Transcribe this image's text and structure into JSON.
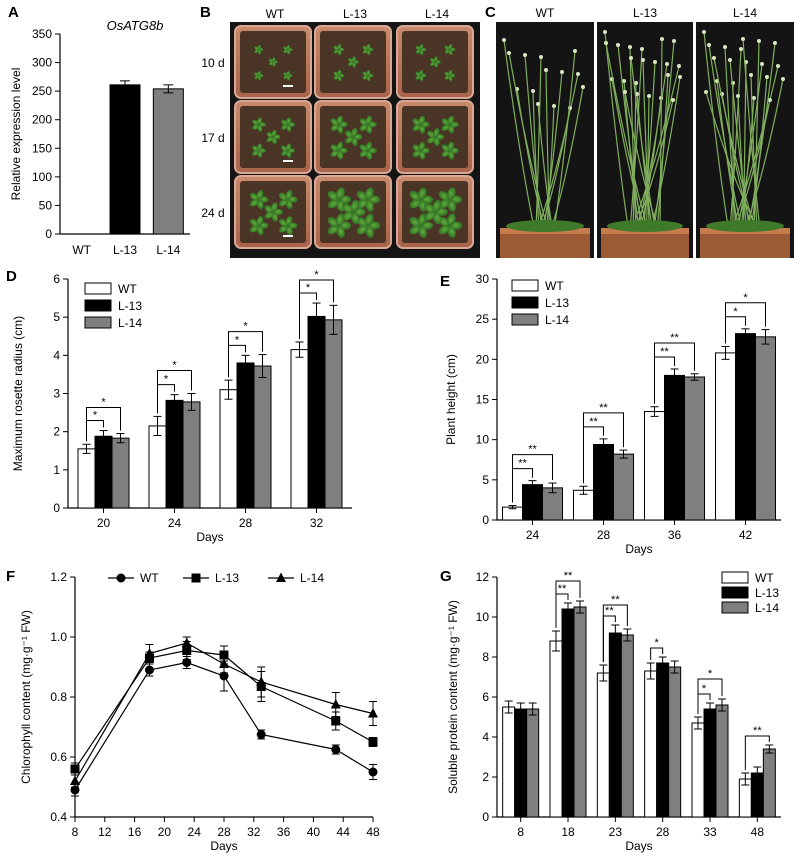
{
  "panels": {
    "A": {
      "label": "A",
      "title": "OsATG8b",
      "ylabel": "Relative expression level",
      "type": "bar",
      "categories": [
        "WT",
        "L-13",
        "L-14"
      ],
      "values": [
        0,
        261,
        254
      ],
      "errors": [
        0,
        7,
        7
      ],
      "colors": [
        "#ffffff",
        "#000000",
        "#7f7f7f"
      ],
      "ylim": [
        0,
        350
      ],
      "yticks": [
        0,
        50,
        100,
        150,
        200,
        250,
        300,
        350
      ]
    },
    "B": {
      "label": "B",
      "columns": [
        "WT",
        "L-13",
        "L-14"
      ],
      "rows": [
        "10 d",
        "17 d",
        "24 d"
      ]
    },
    "C": {
      "label": "C",
      "columns": [
        "WT",
        "L-13",
        "L-14"
      ]
    },
    "D": {
      "label": "D",
      "xlabel": "Days",
      "ylabel": "Maximum rosette radius (cm)",
      "legend": [
        "WT",
        "L-13",
        "L-14"
      ],
      "legend_position": "top-left"
    },
    "E": {
      "label": "E",
      "xlabel": "Days",
      "ylabel": "Plant height (cm)",
      "legend": [
        "WT",
        "L-13",
        "L-14"
      ],
      "legend_position": "top-left"
    },
    "F": {
      "label": "F",
      "xlabel": "Days",
      "ylabel": "Chlorophyll content (mg·g⁻¹ FW)",
      "legend": [
        "WT",
        "L-13",
        "L-14"
      ],
      "legend_position": "top"
    },
    "G": {
      "label": "G",
      "xlabel": "Days",
      "ylabel": "Soluble protein content (mg·g⁻¹ FW)",
      "legend": [
        "WT",
        "L-13",
        "L-14"
      ],
      "legend_position": "top-right"
    }
  },
  "chart_data": [
    {
      "panel": "A",
      "type": "bar",
      "categories": [
        "WT",
        "L-13",
        "L-14"
      ],
      "values": [
        0,
        261,
        254
      ],
      "errors": [
        0,
        7,
        7
      ],
      "title": "OsATG8b",
      "ylabel": "Relative expression level",
      "ylim": [
        0,
        350
      ]
    },
    {
      "panel": "D",
      "type": "bar",
      "categories": [
        "20",
        "24",
        "28",
        "32"
      ],
      "series": [
        {
          "name": "WT",
          "values": [
            1.55,
            2.15,
            3.1,
            4.15
          ],
          "errors": [
            0.12,
            0.25,
            0.25,
            0.2
          ]
        },
        {
          "name": "L-13",
          "values": [
            1.88,
            2.82,
            3.8,
            5.02
          ],
          "errors": [
            0.15,
            0.15,
            0.2,
            0.35
          ]
        },
        {
          "name": "L-14",
          "values": [
            1.83,
            2.78,
            3.72,
            4.93
          ],
          "errors": [
            0.12,
            0.22,
            0.3,
            0.38
          ]
        }
      ],
      "significance": [
        {
          "category": "20",
          "pairs": [
            [
              "WT",
              "L-13",
              "*"
            ],
            [
              "WT",
              "L-14",
              "*"
            ]
          ]
        },
        {
          "category": "24",
          "pairs": [
            [
              "WT",
              "L-13",
              "*"
            ],
            [
              "WT",
              "L-14",
              "*"
            ]
          ]
        },
        {
          "category": "28",
          "pairs": [
            [
              "WT",
              "L-13",
              "*"
            ],
            [
              "WT",
              "L-14",
              "*"
            ]
          ]
        },
        {
          "category": "32",
          "pairs": [
            [
              "WT",
              "L-13",
              "*"
            ],
            [
              "WT",
              "L-14",
              "*"
            ]
          ]
        }
      ],
      "xlabel": "Days",
      "ylabel": "Maximum rosette radius (cm)",
      "ylim": [
        0,
        6
      ]
    },
    {
      "panel": "E",
      "type": "bar",
      "categories": [
        "24",
        "28",
        "36",
        "42"
      ],
      "series": [
        {
          "name": "WT",
          "values": [
            1.6,
            3.7,
            13.5,
            20.8
          ],
          "errors": [
            0.2,
            0.5,
            0.6,
            0.8
          ]
        },
        {
          "name": "L-13",
          "values": [
            4.4,
            9.4,
            18.0,
            23.2
          ],
          "errors": [
            0.5,
            0.7,
            0.8,
            0.6
          ]
        },
        {
          "name": "L-14",
          "values": [
            4.0,
            8.2,
            17.8,
            22.8
          ],
          "errors": [
            0.6,
            0.5,
            0.4,
            0.9
          ]
        }
      ],
      "significance": [
        {
          "category": "24",
          "pairs": [
            [
              "WT",
              "L-13",
              "**"
            ],
            [
              "WT",
              "L-14",
              "**"
            ]
          ]
        },
        {
          "category": "28",
          "pairs": [
            [
              "WT",
              "L-13",
              "**"
            ],
            [
              "WT",
              "L-14",
              "**"
            ]
          ]
        },
        {
          "category": "36",
          "pairs": [
            [
              "WT",
              "L-13",
              "**"
            ],
            [
              "WT",
              "L-14",
              "**"
            ]
          ]
        },
        {
          "category": "42",
          "pairs": [
            [
              "WT",
              "L-13",
              "*"
            ],
            [
              "WT",
              "L-14",
              "*"
            ]
          ]
        }
      ],
      "xlabel": "Days",
      "ylabel": "Plant height (cm)",
      "ylim": [
        0,
        30
      ]
    },
    {
      "panel": "F",
      "type": "line",
      "x": [
        8,
        18,
        23,
        28,
        33,
        43,
        48
      ],
      "series": [
        {
          "name": "WT",
          "marker": "circle",
          "values": [
            0.49,
            0.89,
            0.915,
            0.87,
            0.675,
            0.625,
            0.55
          ],
          "errors": [
            0.02,
            0.02,
            0.02,
            0.05,
            0.015,
            0.015,
            0.025
          ]
        },
        {
          "name": "L-13",
          "marker": "square",
          "values": [
            0.56,
            0.93,
            0.955,
            0.94,
            0.835,
            0.72,
            0.65
          ],
          "errors": [
            0.02,
            0.02,
            0.03,
            0.03,
            0.05,
            0.03,
            0.015
          ]
        },
        {
          "name": "L-14",
          "marker": "triangle",
          "values": [
            0.52,
            0.945,
            0.98,
            0.91,
            0.85,
            0.775,
            0.745
          ],
          "errors": [
            0.02,
            0.03,
            0.02,
            0.03,
            0.05,
            0.04,
            0.04
          ]
        }
      ],
      "xticks": [
        8,
        12,
        16,
        20,
        24,
        28,
        32,
        36,
        40,
        44,
        48
      ],
      "xlabel": "Days",
      "ylabel": "Chlorophyll content (mg·g⁻¹ FW)",
      "xlim": [
        8,
        48
      ],
      "ylim": [
        0.4,
        1.2
      ]
    },
    {
      "panel": "G",
      "type": "bar",
      "categories": [
        "8",
        "18",
        "23",
        "28",
        "33",
        "48"
      ],
      "series": [
        {
          "name": "WT",
          "values": [
            5.5,
            8.8,
            7.2,
            7.3,
            4.7,
            1.9
          ],
          "errors": [
            0.3,
            0.5,
            0.4,
            0.4,
            0.3,
            0.3
          ]
        },
        {
          "name": "L-13",
          "values": [
            5.4,
            10.4,
            9.2,
            7.7,
            5.4,
            2.2
          ],
          "errors": [
            0.3,
            0.3,
            0.4,
            0.3,
            0.3,
            0.3
          ]
        },
        {
          "name": "L-14",
          "values": [
            5.4,
            10.5,
            9.1,
            7.5,
            5.6,
            3.4
          ],
          "errors": [
            0.3,
            0.3,
            0.3,
            0.3,
            0.3,
            0.2
          ]
        }
      ],
      "significance": [
        {
          "category": "18",
          "pairs": [
            [
              "WT",
              "L-13",
              "**"
            ],
            [
              "WT",
              "L-14",
              "**"
            ]
          ]
        },
        {
          "category": "23",
          "pairs": [
            [
              "WT",
              "L-13",
              "**"
            ],
            [
              "WT",
              "L-14",
              "**"
            ]
          ]
        },
        {
          "category": "28",
          "pairs": [
            [
              "WT",
              "L-13",
              "*"
            ]
          ]
        },
        {
          "category": "33",
          "pairs": [
            [
              "WT",
              "L-13",
              "*"
            ],
            [
              "WT",
              "L-14",
              "*"
            ]
          ]
        },
        {
          "category": "48",
          "pairs": [
            [
              "WT",
              "L-14",
              "**"
            ]
          ]
        }
      ],
      "xlabel": "Days",
      "ylabel": "Soluble protein content (mg·g⁻¹ FW)",
      "ylim": [
        0,
        12
      ]
    }
  ]
}
